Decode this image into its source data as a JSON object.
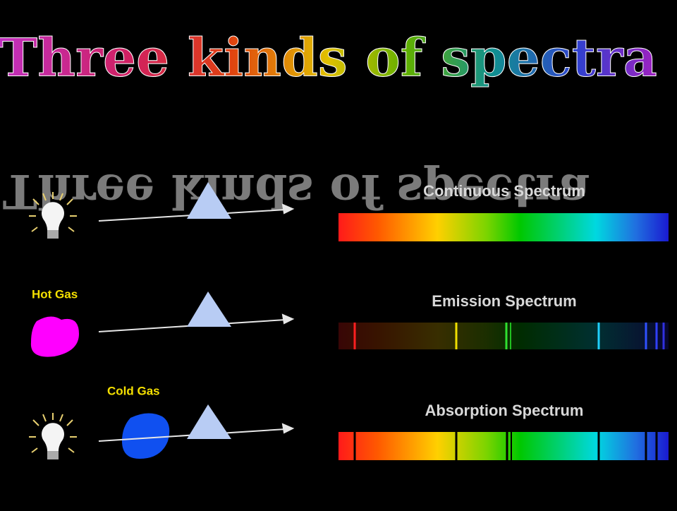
{
  "title": "Three kinds of spectra",
  "rows": [
    {
      "label": "Continuous Spectrum"
    },
    {
      "source_label": "Hot Gas",
      "label": "Emission Spectrum"
    },
    {
      "source_label": "Cold Gas",
      "label": "Absorption Spectrum"
    }
  ]
}
